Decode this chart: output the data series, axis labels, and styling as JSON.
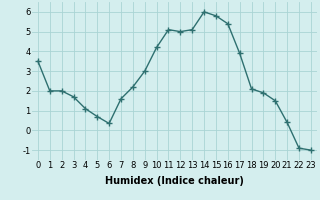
{
  "x": [
    0,
    1,
    2,
    3,
    4,
    5,
    6,
    7,
    8,
    9,
    10,
    11,
    12,
    13,
    14,
    15,
    16,
    17,
    18,
    19,
    20,
    21,
    22,
    23
  ],
  "y": [
    3.5,
    2.0,
    2.0,
    1.7,
    1.1,
    0.7,
    0.35,
    1.6,
    2.2,
    3.0,
    4.2,
    5.1,
    5.0,
    5.1,
    6.0,
    5.8,
    5.4,
    3.9,
    2.1,
    1.9,
    1.5,
    0.4,
    -0.9,
    -1.0
  ],
  "line_color": "#2e7070",
  "marker": "+",
  "markersize": 4,
  "linewidth": 1.0,
  "markeredgewidth": 1.0,
  "bg_color": "#d4eeee",
  "grid_color": "#aad4d4",
  "xlabel": "Humidex (Indice chaleur)",
  "xlabel_fontsize": 7,
  "tick_fontsize": 6,
  "xlim": [
    -0.5,
    23.5
  ],
  "ylim": [
    -1.5,
    6.5
  ],
  "yticks": [
    -1,
    0,
    1,
    2,
    3,
    4,
    5,
    6
  ],
  "xticks": [
    0,
    1,
    2,
    3,
    4,
    5,
    6,
    7,
    8,
    9,
    10,
    11,
    12,
    13,
    14,
    15,
    16,
    17,
    18,
    19,
    20,
    21,
    22,
    23
  ]
}
